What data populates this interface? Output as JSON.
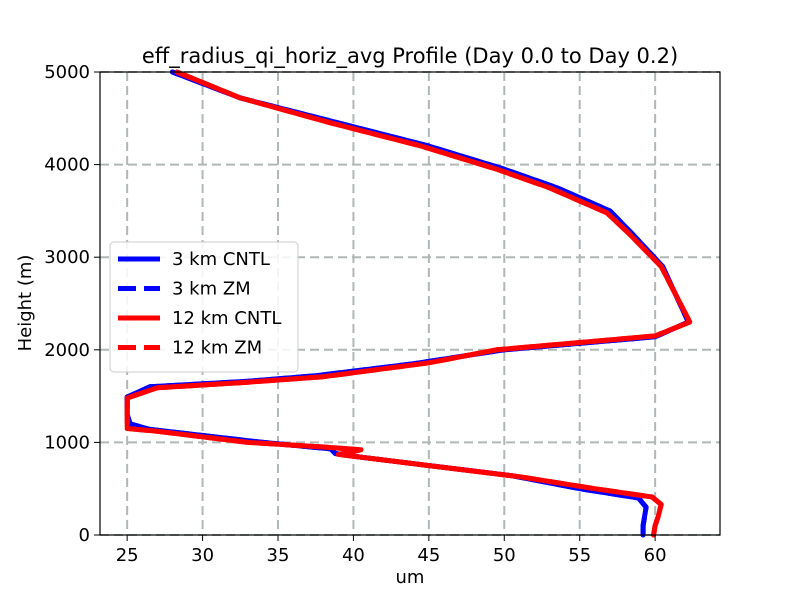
{
  "chart_data": {
    "type": "line",
    "title": "eff_radius_qi_horiz_avg Profile (Day 0.0 to Day 0.2)",
    "xlabel": "um",
    "ylabel": "Height (m)",
    "xlim": [
      23.2,
      64.3
    ],
    "ylim": [
      0,
      5000
    ],
    "xticks": [
      25,
      30,
      35,
      40,
      45,
      50,
      55,
      60
    ],
    "yticks": [
      0,
      1000,
      2000,
      3000,
      4000,
      5000
    ],
    "grid": true,
    "legend_position": "center-left",
    "series": [
      {
        "name": "3 km CNTL",
        "color": "#0000ff",
        "style": "solid",
        "points": [
          [
            59.2,
            0
          ],
          [
            59.2,
            100
          ],
          [
            59.3,
            200
          ],
          [
            59.4,
            300
          ],
          [
            58.9,
            400
          ],
          [
            55.0,
            500
          ],
          [
            50.5,
            640
          ],
          [
            44.0,
            770
          ],
          [
            40.5,
            840
          ],
          [
            38.8,
            880
          ],
          [
            38.5,
            930
          ],
          [
            34.0,
            1000
          ],
          [
            26.5,
            1140
          ],
          [
            25.2,
            1200
          ],
          [
            25.0,
            1300
          ],
          [
            25.0,
            1490
          ],
          [
            26.5,
            1600
          ],
          [
            33.0,
            1660
          ],
          [
            37.5,
            1720
          ],
          [
            44.0,
            1850
          ],
          [
            50.0,
            2000
          ],
          [
            60.0,
            2140
          ],
          [
            62.2,
            2300
          ],
          [
            60.5,
            2900
          ],
          [
            58.5,
            3250
          ],
          [
            57.0,
            3500
          ],
          [
            53.5,
            3750
          ],
          [
            50.0,
            3950
          ],
          [
            45.0,
            4200
          ],
          [
            39.0,
            4450
          ],
          [
            32.5,
            4720
          ],
          [
            28.0,
            5000
          ]
        ]
      },
      {
        "name": "3 km ZM",
        "color": "#0000ff",
        "style": "dashed",
        "points": [
          [
            59.2,
            0
          ],
          [
            59.2,
            100
          ],
          [
            59.3,
            200
          ],
          [
            59.4,
            300
          ],
          [
            58.9,
            400
          ],
          [
            55.0,
            500
          ],
          [
            50.5,
            640
          ],
          [
            44.0,
            770
          ],
          [
            40.5,
            840
          ],
          [
            38.8,
            880
          ],
          [
            38.5,
            930
          ],
          [
            34.0,
            1000
          ],
          [
            26.5,
            1140
          ],
          [
            25.2,
            1200
          ],
          [
            25.0,
            1300
          ],
          [
            25.0,
            1490
          ],
          [
            26.5,
            1600
          ],
          [
            33.0,
            1660
          ],
          [
            37.5,
            1720
          ],
          [
            44.0,
            1850
          ],
          [
            50.0,
            2000
          ],
          [
            60.0,
            2140
          ],
          [
            62.2,
            2300
          ],
          [
            60.5,
            2900
          ],
          [
            58.5,
            3250
          ],
          [
            57.0,
            3500
          ],
          [
            53.5,
            3750
          ],
          [
            50.0,
            3950
          ],
          [
            45.0,
            4200
          ],
          [
            39.0,
            4450
          ],
          [
            32.5,
            4720
          ],
          [
            28.0,
            5000
          ]
        ]
      },
      {
        "name": "12 km CNTL",
        "color": "#ff0000",
        "style": "solid",
        "points": [
          [
            59.9,
            0
          ],
          [
            60.0,
            100
          ],
          [
            60.2,
            200
          ],
          [
            60.4,
            330
          ],
          [
            59.8,
            410
          ],
          [
            56.0,
            500
          ],
          [
            51.0,
            630
          ],
          [
            45.0,
            750
          ],
          [
            41.0,
            830
          ],
          [
            39.0,
            870
          ],
          [
            40.5,
            920
          ],
          [
            38.0,
            950
          ],
          [
            33.0,
            1000
          ],
          [
            27.0,
            1120
          ],
          [
            25.0,
            1150
          ],
          [
            25.0,
            1300
          ],
          [
            25.0,
            1480
          ],
          [
            27.0,
            1590
          ],
          [
            33.0,
            1650
          ],
          [
            38.0,
            1710
          ],
          [
            45.0,
            1860
          ],
          [
            49.5,
            2000
          ],
          [
            60.0,
            2150
          ],
          [
            62.3,
            2300
          ],
          [
            60.4,
            2900
          ],
          [
            58.3,
            3250
          ],
          [
            56.8,
            3480
          ],
          [
            53.0,
            3750
          ],
          [
            49.5,
            3950
          ],
          [
            44.5,
            4200
          ],
          [
            38.5,
            4450
          ],
          [
            32.5,
            4720
          ],
          [
            28.3,
            5000
          ]
        ]
      },
      {
        "name": "12 km ZM",
        "color": "#ff0000",
        "style": "dashed",
        "points": [
          [
            59.9,
            0
          ],
          [
            60.0,
            100
          ],
          [
            60.2,
            200
          ],
          [
            60.4,
            330
          ],
          [
            59.8,
            410
          ],
          [
            56.0,
            500
          ],
          [
            51.0,
            630
          ],
          [
            45.0,
            750
          ],
          [
            41.0,
            830
          ],
          [
            39.0,
            870
          ],
          [
            40.5,
            920
          ],
          [
            38.0,
            950
          ],
          [
            33.0,
            1000
          ],
          [
            27.0,
            1120
          ],
          [
            25.0,
            1150
          ],
          [
            25.0,
            1300
          ],
          [
            25.0,
            1480
          ],
          [
            27.0,
            1590
          ],
          [
            33.0,
            1650
          ],
          [
            38.0,
            1710
          ],
          [
            45.0,
            1860
          ],
          [
            49.5,
            2000
          ],
          [
            60.0,
            2150
          ],
          [
            62.3,
            2300
          ],
          [
            60.4,
            2900
          ],
          [
            58.3,
            3250
          ],
          [
            56.8,
            3480
          ],
          [
            53.0,
            3750
          ],
          [
            49.5,
            3950
          ],
          [
            44.5,
            4200
          ],
          [
            38.5,
            4450
          ],
          [
            32.5,
            4720
          ],
          [
            28.3,
            5000
          ]
        ]
      }
    ]
  }
}
